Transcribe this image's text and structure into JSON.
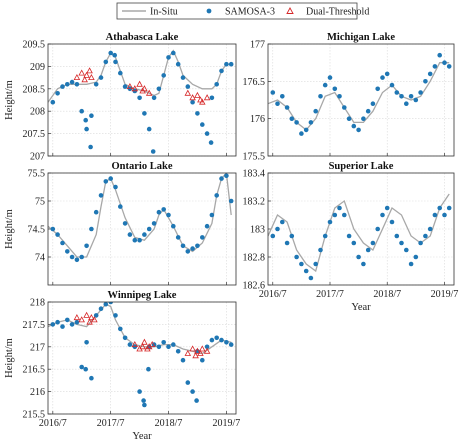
{
  "legend": {
    "entries": [
      {
        "name": "In-Situ",
        "color": "#a8a8a8",
        "marker": "line"
      },
      {
        "name": "SAMOSA-3",
        "color": "#1f77b4",
        "marker": "dot"
      },
      {
        "name": "Dual-Threshold",
        "color": "#d62728",
        "marker": "triangle"
      }
    ]
  },
  "chart_data": [
    {
      "type": "line",
      "title": "Athabasca Lake",
      "ylabel": "Height/m",
      "xlabel": "",
      "xlim": [
        "2016-06",
        "2019-09"
      ],
      "ylim": [
        207,
        209.5
      ],
      "yticks": [
        "207",
        "207.5",
        "208",
        "208.5",
        "209",
        "209.5"
      ],
      "xticks": [],
      "grid": true,
      "series": [
        {
          "name": "In-Situ",
          "color": "#a8a8a8",
          "x": [
            "2016-06",
            "2016-08",
            "2016-10",
            "2016-12",
            "2017-02",
            "2017-04",
            "2017-05",
            "2017-06",
            "2017-07",
            "2017-08",
            "2017-09",
            "2017-10",
            "2017-12",
            "2018-02",
            "2018-04",
            "2018-05",
            "2018-06",
            "2018-07",
            "2018-08",
            "2018-09",
            "2018-10",
            "2018-12",
            "2019-02",
            "2019-04",
            "2019-05",
            "2019-06",
            "2019-07",
            "2019-08"
          ],
          "y": [
            208.2,
            208.5,
            208.6,
            208.6,
            208.6,
            208.65,
            208.8,
            209.1,
            209.3,
            209.2,
            208.9,
            208.6,
            208.5,
            208.45,
            208.35,
            208.4,
            208.8,
            209.2,
            209.35,
            209.1,
            208.8,
            208.6,
            208.5,
            208.5,
            208.6,
            208.9,
            209.05,
            209.05
          ]
        },
        {
          "name": "SAMOSA-3",
          "color": "#1f77b4",
          "x": [
            "2016-07",
            "2016-08",
            "2016-09",
            "2016-10",
            "2016-11",
            "2016-12",
            "2017-01",
            "2017-01",
            "2017-02",
            "2017-02",
            "2017-03",
            "2017-04",
            "2017-05",
            "2017-06",
            "2017-07",
            "2017-07",
            "2017-08",
            "2017-09",
            "2017-10",
            "2017-11",
            "2017-12",
            "2018-01",
            "2018-02",
            "2018-03",
            "2018-03",
            "2018-04",
            "2018-05",
            "2018-06",
            "2018-07",
            "2018-08",
            "2018-09",
            "2018-10",
            "2018-11",
            "2018-12",
            "2019-01",
            "2019-02",
            "2019-03",
            "2019-03",
            "2019-04",
            "2019-05",
            "2019-06",
            "2019-07",
            "2019-08"
          ],
          "y": [
            208.2,
            208.4,
            208.55,
            208.6,
            208.65,
            208.6,
            208.0,
            207.8,
            207.6,
            207.2,
            207.9,
            208.6,
            208.75,
            209.1,
            209.3,
            209.25,
            209.1,
            208.85,
            208.55,
            208.5,
            208.45,
            208.3,
            207.95,
            207.6,
            207.1,
            208.3,
            208.5,
            208.8,
            209.2,
            209.3,
            209.05,
            208.75,
            208.55,
            208.2,
            207.95,
            207.7,
            207.5,
            207.3,
            208.3,
            208.6,
            208.9,
            209.05,
            209.05
          ]
        },
        {
          "name": "Dual-Threshold",
          "color": "#d62728",
          "x": [
            "2016-12",
            "2017-01",
            "2017-01",
            "2017-02",
            "2017-02",
            "2017-03",
            "2017-11",
            "2017-12",
            "2018-01",
            "2018-01",
            "2018-02",
            "2018-03",
            "2018-11",
            "2018-12",
            "2019-01",
            "2019-01",
            "2019-02",
            "2019-03"
          ],
          "y": [
            208.75,
            208.85,
            208.7,
            208.8,
            208.9,
            208.75,
            208.55,
            208.5,
            208.6,
            208.45,
            208.5,
            208.4,
            208.4,
            208.3,
            208.35,
            208.25,
            208.2,
            208.3
          ]
        }
      ]
    },
    {
      "type": "line",
      "title": "Michigan Lake",
      "ylabel": "",
      "xlabel": "",
      "xlim": [
        "2016-06",
        "2019-09"
      ],
      "ylim": [
        175.5,
        177
      ],
      "yticks": [
        "175.5",
        "176",
        "176.5",
        "177"
      ],
      "xticks": [],
      "grid": true,
      "series": [
        {
          "name": "In-Situ",
          "color": "#a8a8a8",
          "x": [
            "2016-06",
            "2016-08",
            "2016-10",
            "2016-12",
            "2017-02",
            "2017-04",
            "2017-06",
            "2017-08",
            "2017-10",
            "2017-12",
            "2018-02",
            "2018-04",
            "2018-06",
            "2018-08",
            "2018-10",
            "2018-12",
            "2019-02",
            "2019-04",
            "2019-06",
            "2019-08"
          ],
          "y": [
            176.2,
            176.25,
            176.15,
            175.95,
            175.85,
            176.0,
            176.3,
            176.35,
            176.15,
            175.95,
            175.95,
            176.1,
            176.35,
            176.45,
            176.3,
            176.25,
            176.3,
            176.5,
            176.75,
            176.75
          ]
        },
        {
          "name": "SAMOSA-3",
          "color": "#1f77b4",
          "x": [
            "2016-07",
            "2016-08",
            "2016-09",
            "2016-10",
            "2016-11",
            "2016-12",
            "2017-01",
            "2017-02",
            "2017-03",
            "2017-04",
            "2017-05",
            "2017-06",
            "2017-07",
            "2017-08",
            "2017-09",
            "2017-10",
            "2017-11",
            "2017-12",
            "2018-01",
            "2018-02",
            "2018-03",
            "2018-04",
            "2018-05",
            "2018-06",
            "2018-07",
            "2018-08",
            "2018-09",
            "2018-10",
            "2018-11",
            "2018-12",
            "2019-01",
            "2019-02",
            "2019-03",
            "2019-04",
            "2019-05",
            "2019-06",
            "2019-07",
            "2019-08"
          ],
          "y": [
            176.35,
            176.2,
            176.3,
            176.15,
            176.0,
            175.95,
            175.8,
            175.85,
            175.95,
            176.1,
            176.3,
            176.45,
            176.55,
            176.4,
            176.3,
            176.15,
            176.0,
            175.9,
            175.85,
            176.0,
            176.1,
            176.2,
            176.4,
            176.55,
            176.6,
            176.45,
            176.35,
            176.3,
            176.2,
            176.3,
            176.25,
            176.35,
            176.5,
            176.6,
            176.7,
            176.85,
            176.75,
            176.7
          ]
        }
      ]
    },
    {
      "type": "line",
      "title": "Ontario Lake",
      "ylabel": "Height/m",
      "xlabel": "",
      "xlim": [
        "2016-06",
        "2019-09"
      ],
      "ylim": [
        73.5,
        75.5
      ],
      "yticks": [
        "74",
        "74.5",
        "75",
        "75.5"
      ],
      "xticks": [],
      "grid": true,
      "series": [
        {
          "name": "In-Situ",
          "color": "#a8a8a8",
          "x": [
            "2016-06",
            "2016-08",
            "2016-10",
            "2016-12",
            "2017-02",
            "2017-04",
            "2017-05",
            "2017-06",
            "2017-07",
            "2017-08",
            "2017-10",
            "2017-12",
            "2018-02",
            "2018-04",
            "2018-05",
            "2018-06",
            "2018-08",
            "2018-10",
            "2018-12",
            "2019-02",
            "2019-04",
            "2019-05",
            "2019-06",
            "2019-07",
            "2019-08"
          ],
          "y": [
            74.55,
            74.4,
            74.2,
            74.0,
            74.0,
            74.4,
            74.9,
            75.35,
            75.4,
            75.2,
            74.7,
            74.35,
            74.3,
            74.5,
            74.75,
            74.85,
            74.55,
            74.2,
            74.1,
            74.25,
            74.6,
            75.1,
            75.4,
            75.5,
            74.75
          ]
        },
        {
          "name": "SAMOSA-3",
          "color": "#1f77b4",
          "x": [
            "2016-07",
            "2016-08",
            "2016-09",
            "2016-10",
            "2016-11",
            "2016-12",
            "2017-01",
            "2017-02",
            "2017-03",
            "2017-04",
            "2017-05",
            "2017-06",
            "2017-07",
            "2017-08",
            "2017-09",
            "2017-10",
            "2017-11",
            "2017-12",
            "2018-01",
            "2018-02",
            "2018-03",
            "2018-04",
            "2018-05",
            "2018-06",
            "2018-07",
            "2018-08",
            "2018-09",
            "2018-10",
            "2018-11",
            "2018-12",
            "2019-01",
            "2019-02",
            "2019-03",
            "2019-04",
            "2019-05",
            "2019-06",
            "2019-07",
            "2019-08"
          ],
          "y": [
            74.5,
            74.4,
            74.25,
            74.1,
            74.0,
            73.95,
            74.0,
            74.2,
            74.5,
            74.8,
            75.1,
            75.35,
            75.4,
            75.25,
            74.9,
            74.6,
            74.4,
            74.3,
            74.3,
            74.4,
            74.5,
            74.6,
            74.8,
            74.85,
            74.75,
            74.55,
            74.35,
            74.2,
            74.1,
            74.15,
            74.2,
            74.35,
            74.55,
            74.75,
            75.1,
            75.4,
            75.45,
            75.0
          ]
        }
      ]
    },
    {
      "type": "line",
      "title": "Superior Lake",
      "ylabel": "",
      "xlabel": "Year",
      "xlim": [
        "2016-06",
        "2019-09"
      ],
      "ylim": [
        182.6,
        183.4
      ],
      "yticks": [
        "182.6",
        "182.8",
        "183",
        "183.2",
        "183.4"
      ],
      "xticks": [
        "2016/7",
        "2017/7",
        "2018/7",
        "2019/7"
      ],
      "grid": true,
      "series": [
        {
          "name": "In-Situ",
          "color": "#a8a8a8",
          "x": [
            "2016-06",
            "2016-08",
            "2016-10",
            "2016-12",
            "2017-02",
            "2017-04",
            "2017-06",
            "2017-08",
            "2017-10",
            "2017-12",
            "2018-02",
            "2018-04",
            "2018-06",
            "2018-08",
            "2018-10",
            "2018-12",
            "2019-02",
            "2019-04",
            "2019-06",
            "2019-08"
          ],
          "y": [
            182.95,
            183.1,
            183.05,
            182.85,
            182.75,
            182.7,
            182.95,
            183.15,
            183.2,
            183.0,
            182.9,
            182.85,
            183.0,
            183.15,
            183.1,
            182.95,
            182.9,
            182.95,
            183.15,
            183.25
          ]
        },
        {
          "name": "SAMOSA-3",
          "color": "#1f77b4",
          "x": [
            "2016-07",
            "2016-08",
            "2016-09",
            "2016-10",
            "2016-11",
            "2016-12",
            "2017-01",
            "2017-02",
            "2017-03",
            "2017-04",
            "2017-05",
            "2017-06",
            "2017-07",
            "2017-08",
            "2017-09",
            "2017-10",
            "2017-11",
            "2017-12",
            "2018-01",
            "2018-02",
            "2018-03",
            "2018-04",
            "2018-05",
            "2018-06",
            "2018-07",
            "2018-08",
            "2018-09",
            "2018-10",
            "2018-11",
            "2018-12",
            "2019-01",
            "2019-02",
            "2019-03",
            "2019-04",
            "2019-05",
            "2019-06",
            "2019-07",
            "2019-08"
          ],
          "y": [
            182.95,
            183.0,
            183.05,
            182.9,
            182.95,
            182.8,
            182.75,
            182.7,
            182.65,
            182.75,
            182.85,
            182.95,
            183.05,
            183.1,
            183.15,
            183.1,
            182.95,
            182.9,
            182.8,
            182.75,
            182.85,
            182.9,
            183.0,
            183.1,
            183.15,
            183.05,
            182.95,
            182.9,
            182.85,
            182.75,
            182.8,
            182.9,
            182.95,
            183.0,
            183.1,
            183.15,
            183.1,
            183.15
          ]
        }
      ]
    },
    {
      "type": "line",
      "title": "Winnipeg Lake",
      "ylabel": "Height/m",
      "xlabel": "Year",
      "xlim": [
        "2016-06",
        "2019-09"
      ],
      "ylim": [
        215.5,
        218
      ],
      "yticks": [
        "215.5",
        "216",
        "216.5",
        "217",
        "217.5",
        "218"
      ],
      "xticks": [
        "2016/7",
        "2017/7",
        "2018/7",
        "2019/7"
      ],
      "grid": true,
      "series": [
        {
          "name": "In-Situ",
          "color": "#a8a8a8",
          "x": [
            "2016-06",
            "2016-08",
            "2016-10",
            "2016-12",
            "2017-02",
            "2017-04",
            "2017-06",
            "2017-07",
            "2017-08",
            "2017-10",
            "2017-12",
            "2018-02",
            "2018-04",
            "2018-06",
            "2018-08",
            "2018-10",
            "2018-12",
            "2019-02",
            "2019-04",
            "2019-06",
            "2019-08"
          ],
          "y": [
            217.45,
            217.55,
            217.6,
            217.5,
            217.45,
            217.7,
            217.95,
            217.9,
            217.6,
            217.2,
            217.05,
            217.0,
            217.0,
            217.05,
            217.05,
            216.95,
            216.9,
            216.85,
            217.0,
            217.15,
            217.1
          ]
        },
        {
          "name": "SAMOSA-3",
          "color": "#1f77b4",
          "x": [
            "2016-07",
            "2016-08",
            "2016-09",
            "2016-10",
            "2016-11",
            "2016-12",
            "2017-01",
            "2017-01",
            "2017-02",
            "2017-03",
            "2017-04",
            "2017-05",
            "2017-06",
            "2017-07",
            "2017-08",
            "2017-09",
            "2017-10",
            "2017-11",
            "2017-12",
            "2018-01",
            "2018-01",
            "2018-02",
            "2018-02",
            "2018-03",
            "2018-04",
            "2018-05",
            "2018-06",
            "2018-07",
            "2018-08",
            "2018-09",
            "2018-10",
            "2018-11",
            "2018-12",
            "2018-12",
            "2019-01",
            "2019-02",
            "2019-03",
            "2019-04",
            "2019-05",
            "2019-06",
            "2019-07",
            "2019-08"
          ],
          "y": [
            217.5,
            217.55,
            217.45,
            217.6,
            217.5,
            217.55,
            216.55,
            216.5,
            217.1,
            216.3,
            217.7,
            217.85,
            217.95,
            218.0,
            217.7,
            217.4,
            217.2,
            217.05,
            217.0,
            216.0,
            215.8,
            215.7,
            216.5,
            217.0,
            217.05,
            217.0,
            217.1,
            217.0,
            217.05,
            216.9,
            216.7,
            216.2,
            216.0,
            215.8,
            216.9,
            216.7,
            217.0,
            217.15,
            217.2,
            217.15,
            217.1,
            217.05
          ]
        },
        {
          "name": "Dual-Threshold",
          "color": "#d62728",
          "x": [
            "2016-12",
            "2017-01",
            "2017-02",
            "2017-02",
            "2017-03",
            "2017-03",
            "2017-12",
            "2018-01",
            "2018-01",
            "2018-02",
            "2018-02",
            "2018-03",
            "2018-03",
            "2018-11",
            "2018-12",
            "2018-12",
            "2019-01",
            "2019-01",
            "2019-02",
            "2019-03"
          ],
          "y": [
            217.65,
            217.6,
            217.7,
            217.55,
            217.65,
            217.6,
            217.05,
            216.95,
            217.0,
            217.1,
            216.95,
            217.0,
            217.05,
            216.85,
            216.95,
            216.8,
            216.9,
            216.85,
            216.95,
            216.9
          ]
        }
      ]
    }
  ]
}
